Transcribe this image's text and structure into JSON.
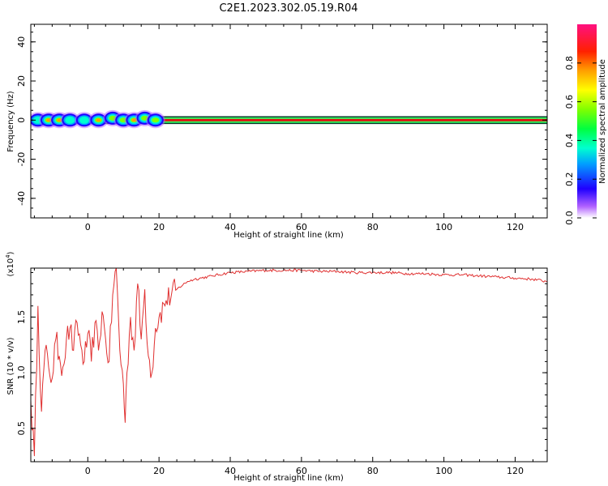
{
  "title": "C2E1.2023.302.05.19.R04",
  "chart_data": [
    {
      "type": "heatmap",
      "xlabel": "Height of straight line (km)",
      "ylabel": "Frequency (Hz)",
      "xlim": [
        -16,
        129
      ],
      "ylim": [
        -50,
        49
      ],
      "xticks": [
        "0",
        "20",
        "40",
        "60",
        "80",
        "100",
        "120"
      ],
      "yticks": [
        "-40",
        "-20",
        "0",
        "20",
        "40"
      ],
      "colorbar": {
        "label": "Normalized spectral amplitude",
        "range": [
          0,
          1
        ],
        "ticks": [
          "0.0",
          "0.2",
          "0.4",
          "0.6",
          "0.8"
        ]
      },
      "band": {
        "center_hz": 0,
        "halfwidth_hz": 2,
        "x_start": -16,
        "x_end": 129
      },
      "blobs": [
        {
          "x": -14,
          "y": 0,
          "a": 0.55
        },
        {
          "x": -11,
          "y": 0,
          "a": 0.9
        },
        {
          "x": -8,
          "y": 0,
          "a": 0.85
        },
        {
          "x": -5,
          "y": 0,
          "a": 0.5
        },
        {
          "x": -1,
          "y": 0,
          "a": 0.55
        },
        {
          "x": 3,
          "y": 0,
          "a": 0.9
        },
        {
          "x": 7,
          "y": 1,
          "a": 0.75
        },
        {
          "x": 10,
          "y": 0,
          "a": 0.6
        },
        {
          "x": 13,
          "y": 0,
          "a": 0.85
        },
        {
          "x": 16,
          "y": 1,
          "a": 0.7
        },
        {
          "x": 19,
          "y": 0,
          "a": 0.8
        }
      ]
    },
    {
      "type": "line",
      "xlabel": "Height of straight line (km)",
      "ylabel": "SNR (10 * v/v)",
      "y_multiplier": "(x10",
      "y_multiplier_exp": "4",
      "y_multiplier_close": ")",
      "xlim": [
        -16,
        129
      ],
      "ylim": [
        0.2,
        1.94
      ],
      "xticks": [
        "0",
        "20",
        "40",
        "60",
        "80",
        "100",
        "120"
      ],
      "yticks": [
        "0.5",
        "1.0",
        "1.5"
      ],
      "color": "#e03030",
      "series": [
        {
          "x": [
            -16,
            -15,
            -14,
            -13,
            -12,
            -11,
            -10,
            -9,
            -8,
            -7,
            -6,
            -5,
            -4,
            -3,
            -2,
            -1,
            0,
            1,
            2,
            3,
            4,
            5,
            6,
            7,
            8,
            9,
            10,
            10.5,
            11,
            12,
            13,
            14,
            15,
            16,
            17,
            18,
            19,
            20,
            22,
            25,
            28,
            30,
            35,
            40,
            45,
            50,
            55,
            60,
            65,
            70,
            75,
            80,
            85,
            90,
            95,
            100,
            105,
            110,
            115,
            120,
            125,
            129
          ],
          "y": [
            0.75,
            0.25,
            1.6,
            0.65,
            1.2,
            1.05,
            0.95,
            1.3,
            1.15,
            1.05,
            1.3,
            1.4,
            1.2,
            1.45,
            1.25,
            1.1,
            1.35,
            1.1,
            1.45,
            1.2,
            1.55,
            1.3,
            1.1,
            1.7,
            1.94,
            1.2,
            0.9,
            0.55,
            1.0,
            1.5,
            1.2,
            1.8,
            1.3,
            1.75,
            1.15,
            1.0,
            1.4,
            1.5,
            1.65,
            1.75,
            1.82,
            1.84,
            1.87,
            1.9,
            1.91,
            1.92,
            1.92,
            1.92,
            1.91,
            1.91,
            1.9,
            1.9,
            1.9,
            1.89,
            1.89,
            1.88,
            1.88,
            1.87,
            1.86,
            1.85,
            1.84,
            1.82
          ]
        }
      ]
    }
  ]
}
